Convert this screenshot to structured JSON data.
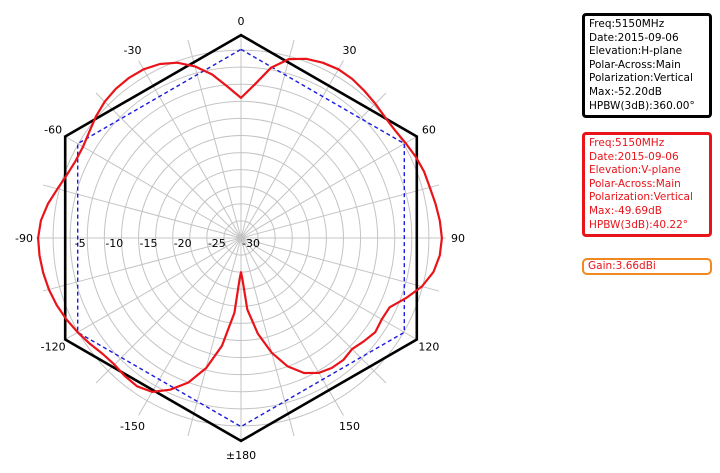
{
  "chart_data": {
    "type": "polar",
    "angle_labels": [
      {
        "deg": 0,
        "text": "0"
      },
      {
        "deg": 30,
        "text": "30"
      },
      {
        "deg": 60,
        "text": "60"
      },
      {
        "deg": 90,
        "text": "90"
      },
      {
        "deg": 120,
        "text": "120"
      },
      {
        "deg": 150,
        "text": "150"
      },
      {
        "deg": 180,
        "text": "±180"
      },
      {
        "deg": -150,
        "text": "-150"
      },
      {
        "deg": -120,
        "text": "-120"
      },
      {
        "deg": -90,
        "text": "-90"
      },
      {
        "deg": -60,
        "text": "-60"
      },
      {
        "deg": -30,
        "text": "-30"
      }
    ],
    "radial_ticks": [
      "-5",
      "-10",
      "-15",
      "-20",
      "-25",
      "-30"
    ],
    "radial_range_db": [
      -30,
      0
    ],
    "series": [
      {
        "color": "#000000",
        "style": "solid",
        "dash": "",
        "width": 2.6,
        "points": [
          [
            0,
            -0.3
          ],
          [
            60,
            -0.3
          ],
          [
            120,
            -0.3
          ],
          [
            180,
            -0.3
          ],
          [
            240,
            -0.3
          ],
          [
            300,
            -0.3
          ],
          [
            360,
            -0.3
          ]
        ]
      },
      {
        "color": "#1c1ce0",
        "style": "dashed",
        "dash": "4 3",
        "width": 1.4,
        "points": [
          [
            0,
            -2.4
          ],
          [
            60,
            -2.4
          ],
          [
            120,
            -2.4
          ],
          [
            180,
            -2.4
          ],
          [
            240,
            -2.4
          ],
          [
            300,
            -2.4
          ],
          [
            360,
            -2.4
          ]
        ]
      },
      {
        "color": "#e8141a",
        "style": "solid",
        "dash": "",
        "width": 2.2,
        "points": [
          [
            0,
            -9.5
          ],
          [
            5,
            -7.5
          ],
          [
            10,
            -4.7
          ],
          [
            15,
            -2.9
          ],
          [
            20,
            -2.1
          ],
          [
            25,
            -1.7
          ],
          [
            30,
            -1.5
          ],
          [
            35,
            -1.6
          ],
          [
            40,
            -1.9
          ],
          [
            45,
            -2.2
          ],
          [
            50,
            -2.5
          ],
          [
            55,
            -2.5
          ],
          [
            60,
            -2.2
          ],
          [
            65,
            -1.8
          ],
          [
            70,
            -1.5
          ],
          [
            75,
            -1.4
          ],
          [
            80,
            -1.1
          ],
          [
            85,
            -0.8
          ],
          [
            90,
            -0.6
          ],
          [
            95,
            -0.8
          ],
          [
            100,
            -1.4
          ],
          [
            105,
            -2.6
          ],
          [
            110,
            -4.3
          ],
          [
            115,
            -6.0
          ],
          [
            120,
            -6.2
          ],
          [
            125,
            -6.0
          ],
          [
            130,
            -6.5
          ],
          [
            135,
            -7.0
          ],
          [
            140,
            -6.7
          ],
          [
            145,
            -6.8
          ],
          [
            150,
            -7.2
          ],
          [
            155,
            -8.2
          ],
          [
            160,
            -10.0
          ],
          [
            165,
            -12.6
          ],
          [
            170,
            -15.8
          ],
          [
            175,
            -19.5
          ],
          [
            178,
            -24.0
          ],
          [
            180,
            -25.0
          ],
          [
            182,
            -24.0
          ],
          [
            185,
            -19.0
          ],
          [
            190,
            -14.0
          ],
          [
            195,
            -10.3
          ],
          [
            200,
            -7.5
          ],
          [
            205,
            -5.5
          ],
          [
            210,
            -4.0
          ],
          [
            215,
            -3.5
          ],
          [
            220,
            -3.6
          ],
          [
            225,
            -3.8
          ],
          [
            230,
            -3.6
          ],
          [
            235,
            -3.0
          ],
          [
            240,
            -2.4
          ],
          [
            245,
            -1.8
          ],
          [
            250,
            -1.3
          ],
          [
            255,
            -0.9
          ],
          [
            260,
            -0.6
          ],
          [
            265,
            -0.4
          ],
          [
            270,
            -0.3
          ],
          [
            275,
            -0.6
          ],
          [
            280,
            -1.3
          ],
          [
            285,
            -2.2
          ],
          [
            290,
            -2.9
          ],
          [
            295,
            -3.3
          ],
          [
            300,
            -3.3
          ],
          [
            305,
            -2.9
          ],
          [
            310,
            -2.3
          ],
          [
            315,
            -1.8
          ],
          [
            320,
            -1.5
          ],
          [
            325,
            -1.4
          ],
          [
            330,
            -1.5
          ],
          [
            335,
            -1.9
          ],
          [
            340,
            -2.7
          ],
          [
            345,
            -4.0
          ],
          [
            350,
            -5.7
          ],
          [
            355,
            -7.8
          ],
          [
            360,
            -9.5
          ]
        ]
      }
    ]
  },
  "legend": {
    "h_plane": [
      "Freq:5150MHz",
      "Date:2015-09-06",
      "Elevation:H-plane",
      "Polar-Across:Main",
      "Polarization:Vertical",
      "Max:-52.20dB",
      "HPBW(3dB):360.00°"
    ],
    "v_plane": [
      "Freq:5150MHz",
      "Date:2015-09-06",
      "Elevation:V-plane",
      "Polar-Across:Main",
      "Polarization:Vertical",
      "Max:-49.69dB",
      "HPBW(3dB):40.22°"
    ],
    "gain": "Gain:3.66dBi"
  }
}
